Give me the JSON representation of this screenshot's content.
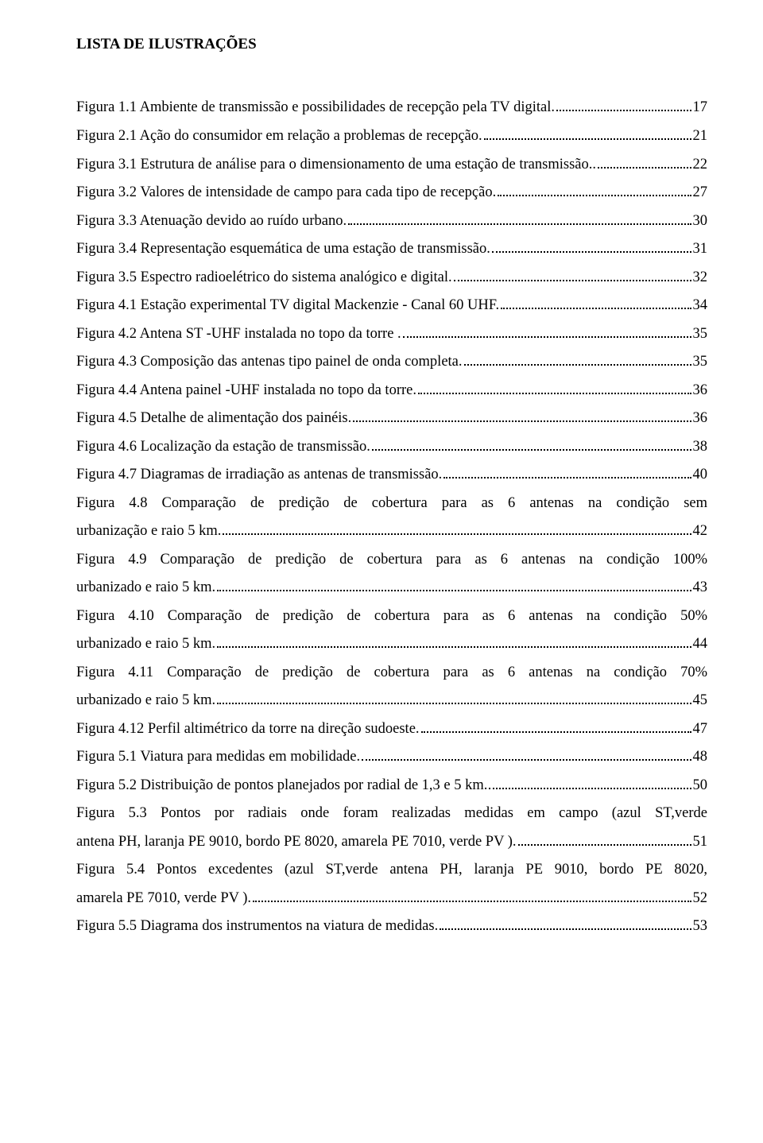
{
  "title": "LISTA DE ILUSTRAÇÕES",
  "entries": [
    {
      "label": "Figura 1.1 Ambiente de transmissão e possibilidades de recepção pela TV digital.",
      "page": "17"
    },
    {
      "label": "Figura 2.1 Ação do consumidor em relação a problemas de recepção.",
      "page": "21"
    },
    {
      "label": "Figura 3.1 Estrutura de análise para o dimensionamento  de uma estação de transmissão..",
      "page": "22"
    },
    {
      "label": "Figura 3.2 Valores de intensidade de campo para cada tipo de recepção.",
      "page": "27"
    },
    {
      "label": "Figura 3.3 Atenuação devido ao ruído urbano.",
      "page": "30"
    },
    {
      "label": "Figura 3.4 Representação esquemática de uma estação de transmissão.",
      "page": "31"
    },
    {
      "label": "Figura 3.5 Espectro radioelétrico do sistema analógico e digital.",
      "page": "32"
    },
    {
      "label": "Figura 4.1 Estação experimental TV digital Mackenzie  - Canal 60 UHF.",
      "page": "34"
    },
    {
      "label": "Figura 4.2 Antena ST -UHF instalada no topo da torre .",
      "page": "35"
    },
    {
      "label": "Figura 4.3 Composição das antenas tipo painel de onda completa.",
      "page": "35"
    },
    {
      "label": "Figura 4.4 Antena painel -UHF instalada no topo da torre.",
      "page": "36"
    },
    {
      "label": "Figura 4.5 Detalhe  de alimentação dos painéis.",
      "page": "36"
    },
    {
      "label": "Figura 4.6 Localização da estação de transmissão.",
      "page": "38"
    },
    {
      "label": "Figura 4.7 Diagramas de irradiação as antenas de transmissão.",
      "page": "40"
    },
    {
      "pre": "Figura 4.8 Comparação de predição de cobertura para as 6 antenas na condição sem",
      "label": "urbanização e raio 5 km.",
      "page": "42"
    },
    {
      "pre": "Figura 4.9 Comparação de predição de cobertura para as 6 antenas na condição 100%",
      "label": "urbanizado e raio 5 km.",
      "page": "43"
    },
    {
      "pre": "Figura 4.10 Comparação de predição de cobertura para as 6 antenas na condição 50%",
      "label": "urbanizado e raio 5 km.",
      "page": "44"
    },
    {
      "pre": "Figura 4.11 Comparação de predição de cobertura para as 6 antenas na condição 70%",
      "label": "urbanizado e raio 5 km.",
      "page": "45"
    },
    {
      "label": "Figura 4.12 Perfil altimétrico da torre na direção sudoeste.",
      "page": "47"
    },
    {
      "label": "Figura 5.1 Viatura para medidas em mobilidade.",
      "page": "48"
    },
    {
      "label": "Figura 5.2 Distribuição de pontos planejados por radial de 1,3 e 5 km.",
      "page": "50"
    },
    {
      "pre": "Figura 5.3  Pontos por radiais onde foram realizadas medidas em campo (azul ST,verde",
      "label": "antena PH, laranja PE 9010, bordo PE 8020, amarela PE 7010, verde PV ).",
      "page": "51"
    },
    {
      "pre": "Figura 5.4  Pontos excedentes (azul ST,verde antena PH, laranja PE 9010, bordo PE 8020,",
      "label": "amarela PE 7010, verde PV ).",
      "page": "52"
    },
    {
      "label": "Figura 5.5 Diagrama dos instrumentos na viatura de medidas.",
      "page": "53"
    }
  ]
}
